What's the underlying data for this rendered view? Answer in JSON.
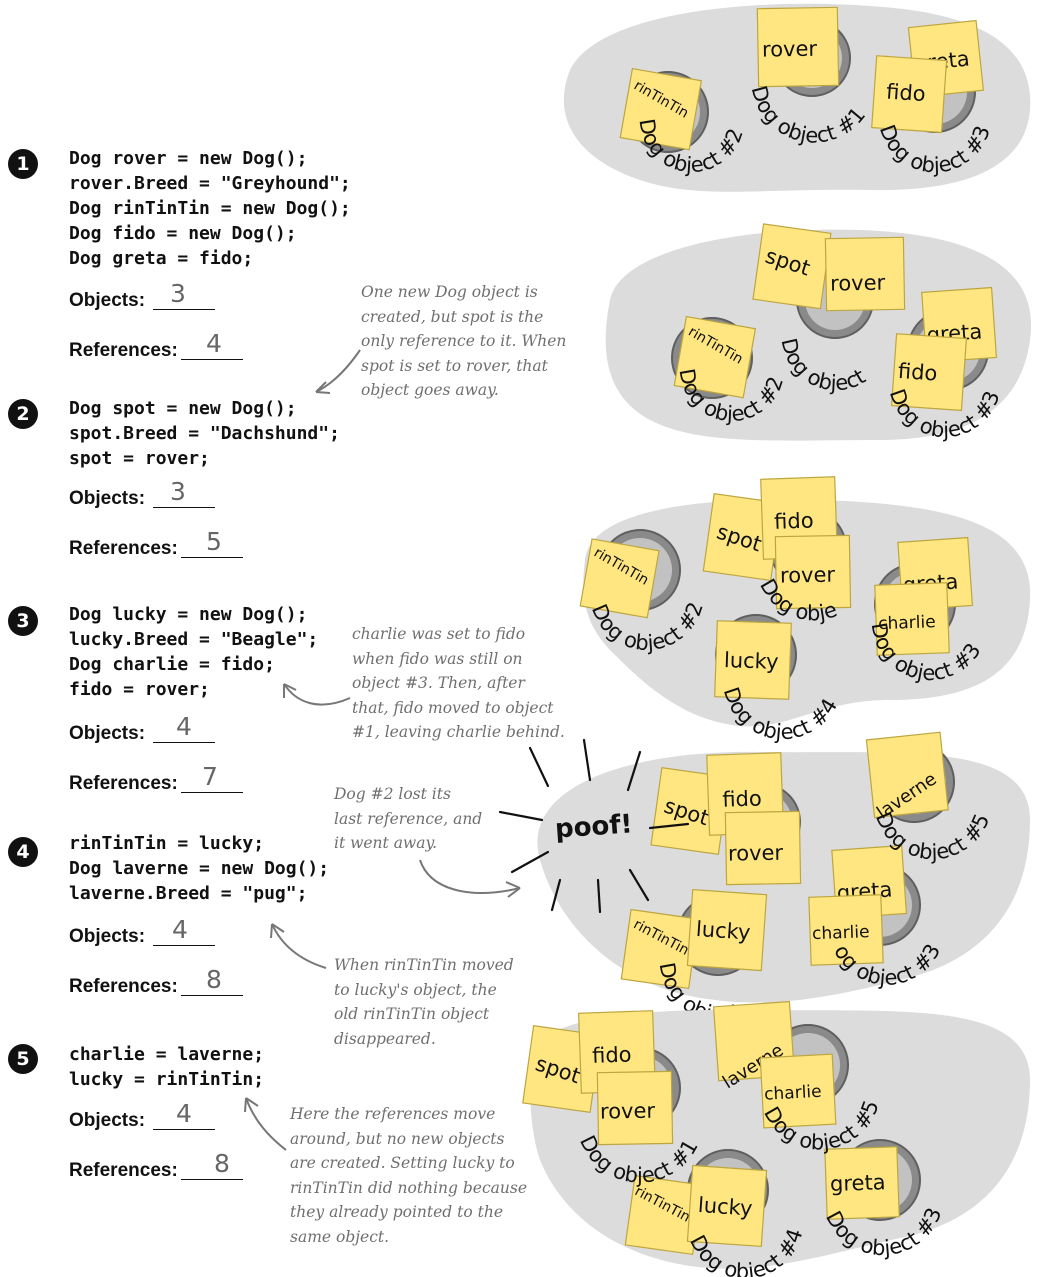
{
  "steps": [
    {
      "number": "1",
      "code": [
        "Dog rover = new Dog();",
        "rover.Breed = \"Greyhound\";",
        "Dog rinTinTin = new Dog();",
        "Dog fido = new Dog();",
        "Dog greta = fido;"
      ],
      "objects_label": "Objects:",
      "objects_value": "3",
      "references_label": "References:",
      "references_value": "4"
    },
    {
      "number": "2",
      "code": [
        "Dog spot = new Dog();",
        "spot.Breed = \"Dachshund\";",
        "spot = rover;"
      ],
      "objects_label": "Objects:",
      "objects_value": "3",
      "references_label": "References:",
      "references_value": "5"
    },
    {
      "number": "3",
      "code": [
        "Dog lucky = new Dog();",
        "lucky.Breed = \"Beagle\";",
        "Dog charlie = fido;",
        "fido = rover;"
      ],
      "objects_label": "Objects:",
      "objects_value": "4",
      "references_label": "References:",
      "references_value": "7"
    },
    {
      "number": "4",
      "code": [
        "rinTinTin = lucky;",
        "Dog laverne = new Dog();",
        "laverne.Breed = \"pug\";"
      ],
      "objects_label": "Objects:",
      "objects_value": "4",
      "references_label": "References:",
      "references_value": "8"
    },
    {
      "number": "5",
      "code": [
        "charlie = laverne;",
        "lucky = rinTinTin;"
      ],
      "objects_label": "Objects:",
      "objects_value": "4",
      "references_label": "References:",
      "references_value": "8"
    }
  ],
  "notes": {
    "step2": "One new Dog object is\ncreated, but spot is the\nonly reference to it. When\nspot is set to rover, that\nobject goes away.",
    "step3": "charlie was set to fido\nwhen fido was still on\nobject #3. Then, after\nthat, fido moved to object\n#1, leaving charlie behind.",
    "dog2": "Dog #2 lost its\nlast reference, and\nit went away.",
    "step4": "When rinTinTin moved\nto lucky's object, the\nold rinTinTin object\ndisappeared.",
    "step5": "Here the references move\naround, but no new objects\nare created. Setting lucky to\nrinTinTin did nothing because\nthey already pointed to the\nsame object."
  },
  "poof": "poof!",
  "diagram": {
    "dog_labels": {
      "d1": "Dog object #1",
      "d2": "Dog object #2",
      "d3": "Dog object #3",
      "d4": "Dog object #4",
      "d5": "Dog object #5",
      "d_partial": "Dog object",
      "d2_partial": "Dog obje",
      "d3_partial": "og object #3"
    },
    "refs": {
      "rover": "rover",
      "rinTinTin": "rinTinTin",
      "greta": "greta",
      "fido": "fido",
      "spot": "spot",
      "lucky": "lucky",
      "charlie": "charlie",
      "laverne": "laverne"
    },
    "colors": {
      "sticky": "#ffe680",
      "blob": "#dcdcdc",
      "hole": "#8a8a8a",
      "note_text": "#6f6f6f"
    }
  }
}
